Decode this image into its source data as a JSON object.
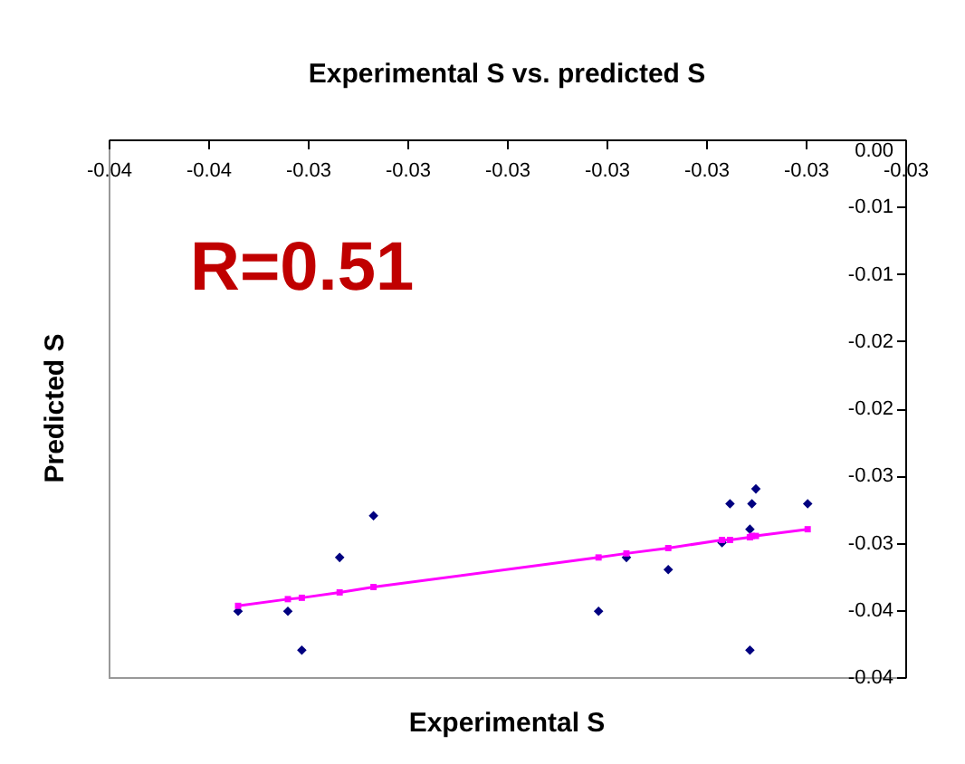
{
  "chart_data": {
    "type": "scatter",
    "title": "Experimental S vs. predicted S",
    "xlabel": "Experimental S",
    "ylabel": "Predicted S",
    "annotations": [
      "R=0.51"
    ],
    "x": [
      -0.03485,
      -0.0346,
      -0.03453,
      -0.03434,
      -0.03417,
      -0.03304,
      -0.0329,
      -0.03269,
      -0.03242,
      -0.03238,
      -0.03228,
      -0.03227,
      -0.03225,
      -0.03228,
      -0.03199
    ],
    "series": [
      {
        "type": "scatter",
        "color": "#000080",
        "values": [
          -0.0351,
          -0.0351,
          -0.038,
          -0.0311,
          -0.028,
          -0.0351,
          -0.0311,
          -0.032,
          -0.03,
          -0.0271,
          -0.029,
          -0.0271,
          -0.026,
          -0.038,
          -0.0271
        ]
      },
      {
        "type": "line",
        "color": "#ff00ff",
        "marker": "square",
        "values": [
          -0.0347,
          -0.0342,
          -0.0341,
          -0.0337,
          -0.0333,
          -0.0311,
          -0.0308,
          -0.0304,
          -0.0298,
          -0.0298,
          -0.0296,
          -0.0295,
          -0.0295,
          -0.0296,
          -0.029
        ]
      }
    ],
    "xlim": [
      -0.0355,
      -0.0315
    ],
    "xticks": [
      {
        "value": -0.0355,
        "label": "-0.04"
      },
      {
        "value": -0.035,
        "label": "-0.04"
      },
      {
        "value": -0.0345,
        "label": "-0.03"
      },
      {
        "value": -0.034,
        "label": "-0.03"
      },
      {
        "value": -0.0335,
        "label": "-0.03"
      },
      {
        "value": -0.033,
        "label": "-0.03"
      },
      {
        "value": -0.0325,
        "label": "-0.03"
      },
      {
        "value": -0.032,
        "label": "-0.03"
      },
      {
        "value": -0.0315,
        "label": "-0.03"
      }
    ],
    "ylim": [
      -0.04,
      0
    ],
    "yticks": [
      {
        "value": 0,
        "label": "0.00"
      },
      {
        "value": -0.005,
        "label": "-0.01"
      },
      {
        "value": -0.01,
        "label": "-0.01"
      },
      {
        "value": -0.015,
        "label": "-0.02"
      },
      {
        "value": -0.02,
        "label": "-0.02"
      },
      {
        "value": -0.025,
        "label": "-0.03"
      },
      {
        "value": -0.03,
        "label": "-0.03"
      },
      {
        "value": -0.035,
        "label": "-0.04"
      },
      {
        "value": -0.04,
        "label": "-0.04"
      }
    ],
    "marker": "diamond"
  }
}
